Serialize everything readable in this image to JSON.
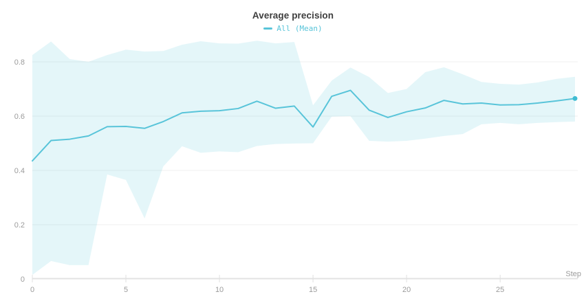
{
  "chart": {
    "title": "Average precision",
    "legend_label": "All (Mean)"
  },
  "chart_data": {
    "type": "line",
    "title": "Average precision",
    "legend": [
      {
        "label": "All (Mean)",
        "series": "mean"
      }
    ],
    "xlabel": "Step",
    "ylabel": "",
    "x": [
      0,
      1,
      2,
      3,
      4,
      5,
      6,
      7,
      8,
      9,
      10,
      11,
      12,
      13,
      14,
      15,
      16,
      17,
      18,
      19,
      20,
      21,
      22,
      23,
      24,
      25,
      26,
      27,
      28,
      29
    ],
    "series": [
      {
        "name": "All (Mean)",
        "values": [
          0.435,
          0.51,
          0.515,
          0.527,
          0.561,
          0.562,
          0.555,
          0.58,
          0.612,
          0.618,
          0.62,
          0.628,
          0.655,
          0.629,
          0.637,
          0.56,
          0.673,
          0.695,
          0.622,
          0.595,
          0.616,
          0.63,
          0.658,
          0.645,
          0.648,
          0.641,
          0.642,
          0.648,
          0.656,
          0.665
        ]
      }
    ],
    "band": {
      "name": "min-max range",
      "upper": [
        0.825,
        0.875,
        0.81,
        0.8,
        0.825,
        0.845,
        0.838,
        0.84,
        0.863,
        0.876,
        0.868,
        0.867,
        0.878,
        0.868,
        0.873,
        0.64,
        0.731,
        0.779,
        0.744,
        0.685,
        0.7,
        0.762,
        0.78,
        0.754,
        0.726,
        0.719,
        0.716,
        0.724,
        0.737,
        0.745
      ],
      "lower": [
        0.015,
        0.066,
        0.051,
        0.051,
        0.385,
        0.365,
        0.223,
        0.415,
        0.489,
        0.465,
        0.47,
        0.467,
        0.49,
        0.497,
        0.499,
        0.5,
        0.598,
        0.6,
        0.509,
        0.506,
        0.509,
        0.517,
        0.527,
        0.534,
        0.57,
        0.575,
        0.57,
        0.575,
        0.578,
        0.58
      ]
    },
    "x_ticks": [
      0,
      5,
      10,
      15,
      20,
      25
    ],
    "y_ticks": [
      0,
      0.2,
      0.4,
      0.6,
      0.8
    ],
    "y_tick_labels": [
      "0",
      "0.2",
      "0.4",
      "0.6",
      "0.8"
    ],
    "xlim": [
      0,
      29
    ],
    "ylim": [
      0,
      0.8
    ],
    "grid": "horizontal-only",
    "legend_position": "top-center",
    "last_point_marker": {
      "x": 29,
      "y": 0.665
    },
    "colors": {
      "line": "#58c4d9",
      "marker": "#3fbcd2",
      "band_fill": "rgba(88,196,217,0.16)",
      "grid": "#efefef",
      "axis": "#e3e3e3",
      "tick": "#e0e0e0",
      "tick_label": "#9b9b9b",
      "title": "#3d3d3d"
    }
  }
}
